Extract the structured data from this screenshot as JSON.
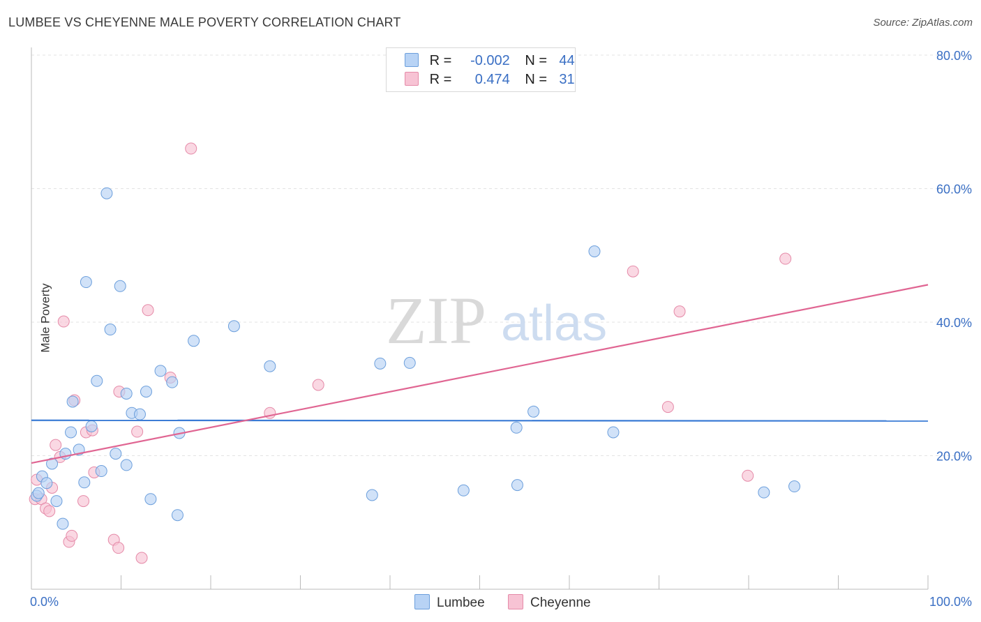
{
  "header": {
    "title": "LUMBEE VS CHEYENNE MALE POVERTY CORRELATION CHART",
    "source": "Source: ZipAtlas.com"
  },
  "watermark": {
    "zip": "ZIP",
    "atlas": "atlas"
  },
  "legend": {
    "r_label": "R =",
    "n_label": "N =",
    "rows": [
      {
        "r": "-0.002",
        "n": "44",
        "color": "#b8d3f5"
      },
      {
        "r": "0.474",
        "n": "31",
        "color": "#f7c3d4"
      }
    ]
  },
  "colors": {
    "lumbee_fill": "#b8d3f5",
    "lumbee_stroke": "#6c9fdc",
    "lumbee_line": "#3a7bd5",
    "cheyenne_fill": "#f7c3d4",
    "cheyenne_stroke": "#e58aa8",
    "cheyenne_line": "#e06592",
    "tick_label": "#3a6fc4",
    "grid": "#e3e3e3"
  },
  "chart_data": {
    "type": "scatter",
    "title": "LUMBEE VS CHEYENNE MALE POVERTY CORRELATION CHART",
    "xlabel": "",
    "ylabel": "Male Poverty",
    "xlim": [
      0,
      100
    ],
    "ylim": [
      0,
      80
    ],
    "x_tick_labels": [
      "0.0%",
      "100.0%"
    ],
    "y_ticks": [
      20,
      40,
      60,
      80
    ],
    "y_tick_labels": [
      "20.0%",
      "40.0%",
      "60.0%",
      "80.0%"
    ],
    "grid": true,
    "legend_position": "top-center",
    "series": [
      {
        "name": "Lumbee",
        "r": -0.002,
        "n": 44,
        "trend": {
          "x": [
            0,
            100
          ],
          "y": [
            25.3,
            25.2
          ]
        },
        "points": [
          [
            0.6,
            14.0
          ],
          [
            0.8,
            14.4
          ],
          [
            1.2,
            16.9
          ],
          [
            1.7,
            15.9
          ],
          [
            2.3,
            18.8
          ],
          [
            2.8,
            13.2
          ],
          [
            3.5,
            9.8
          ],
          [
            3.8,
            20.3
          ],
          [
            4.4,
            23.5
          ],
          [
            4.6,
            28.1
          ],
          [
            5.3,
            20.9
          ],
          [
            5.9,
            16.0
          ],
          [
            6.1,
            46.0
          ],
          [
            6.7,
            24.4
          ],
          [
            7.3,
            31.2
          ],
          [
            7.8,
            17.7
          ],
          [
            8.4,
            59.3
          ],
          [
            8.8,
            38.9
          ],
          [
            9.4,
            20.3
          ],
          [
            9.9,
            45.4
          ],
          [
            10.6,
            29.3
          ],
          [
            10.6,
            18.6
          ],
          [
            11.2,
            26.4
          ],
          [
            12.1,
            26.2
          ],
          [
            12.8,
            29.6
          ],
          [
            13.3,
            13.5
          ],
          [
            14.4,
            32.7
          ],
          [
            15.7,
            31.0
          ],
          [
            16.3,
            11.1
          ],
          [
            16.5,
            23.4
          ],
          [
            18.1,
            37.2
          ],
          [
            22.6,
            39.4
          ],
          [
            26.6,
            33.4
          ],
          [
            38.0,
            14.1
          ],
          [
            38.9,
            33.8
          ],
          [
            42.2,
            33.9
          ],
          [
            48.2,
            14.8
          ],
          [
            54.1,
            24.2
          ],
          [
            54.2,
            15.6
          ],
          [
            56.0,
            26.6
          ],
          [
            62.8,
            50.6
          ],
          [
            64.9,
            23.5
          ],
          [
            81.7,
            14.5
          ],
          [
            85.1,
            15.4
          ]
        ]
      },
      {
        "name": "Cheyenne",
        "r": 0.474,
        "n": 31,
        "trend": {
          "x": [
            0,
            100
          ],
          "y": [
            18.9,
            45.6
          ]
        },
        "points": [
          [
            0.4,
            13.5
          ],
          [
            0.6,
            16.4
          ],
          [
            1.1,
            13.5
          ],
          [
            1.6,
            12.1
          ],
          [
            2.0,
            11.7
          ],
          [
            2.3,
            15.2
          ],
          [
            2.7,
            21.6
          ],
          [
            3.2,
            19.8
          ],
          [
            3.6,
            40.1
          ],
          [
            4.2,
            7.1
          ],
          [
            4.5,
            8.0
          ],
          [
            4.8,
            28.3
          ],
          [
            5.8,
            13.2
          ],
          [
            6.1,
            23.5
          ],
          [
            6.8,
            23.8
          ],
          [
            7.0,
            17.5
          ],
          [
            9.2,
            7.4
          ],
          [
            9.7,
            6.2
          ],
          [
            9.8,
            29.6
          ],
          [
            11.8,
            23.6
          ],
          [
            12.3,
            4.7
          ],
          [
            13.0,
            41.8
          ],
          [
            15.5,
            31.7
          ],
          [
            17.8,
            66.0
          ],
          [
            26.6,
            26.4
          ],
          [
            32.0,
            30.6
          ],
          [
            67.1,
            47.6
          ],
          [
            71.0,
            27.3
          ],
          [
            72.3,
            41.6
          ],
          [
            79.9,
            17.0
          ],
          [
            84.1,
            49.5
          ]
        ]
      }
    ]
  },
  "bottom_legend": [
    "Lumbee",
    "Cheyenne"
  ]
}
